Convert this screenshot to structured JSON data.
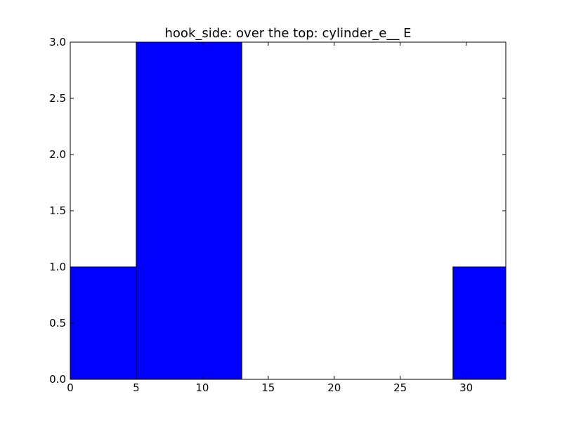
{
  "chart_data": {
    "type": "bar",
    "title": "hook_side: over the top: cylinder_e__ E",
    "xlabel": "",
    "ylabel": "",
    "xlim": [
      0,
      33
    ],
    "ylim": [
      0,
      3.0
    ],
    "xticks": [
      0,
      5,
      10,
      15,
      20,
      25,
      30
    ],
    "xtick_labels": [
      "0",
      "5",
      "10",
      "15",
      "20",
      "25",
      "30"
    ],
    "yticks": [
      0.0,
      0.5,
      1.0,
      1.5,
      2.0,
      2.5,
      3.0
    ],
    "ytick_labels": [
      "0.0",
      "0.5",
      "1.0",
      "1.5",
      "2.0",
      "2.5",
      "3.0"
    ],
    "bins": [
      {
        "x0": 0,
        "x1": 5,
        "value": 1
      },
      {
        "x0": 5,
        "x1": 13,
        "value": 3
      },
      {
        "x0": 13,
        "x1": 21,
        "value": 0
      },
      {
        "x0": 21,
        "x1": 29,
        "value": 0
      },
      {
        "x0": 29,
        "x1": 33,
        "value": 1
      }
    ],
    "bar_color": "#0000ff",
    "edge_color": "#000000",
    "grid": false,
    "legend": "none"
  }
}
